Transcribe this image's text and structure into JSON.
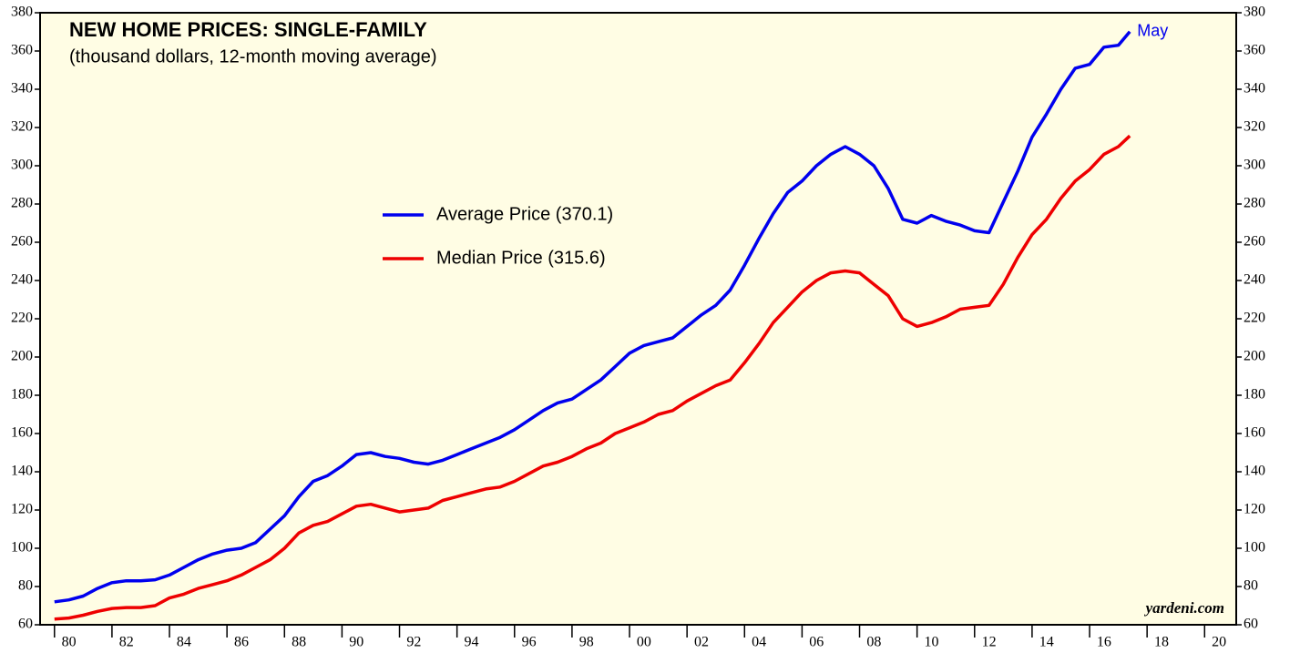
{
  "chart_data": {
    "type": "line",
    "title": "NEW HOME PRICES: SINGLE-FAMILY",
    "subtitle": "(thousand dollars, 12-month moving average)",
    "annotations": [
      "May",
      "yardeni.com"
    ],
    "x": [
      1980.0,
      1980.5,
      1981.0,
      1981.5,
      1982.0,
      1982.5,
      1983.0,
      1983.5,
      1984.0,
      1984.5,
      1985.0,
      1985.5,
      1986.0,
      1986.5,
      1987.0,
      1987.5,
      1988.0,
      1988.5,
      1989.0,
      1989.5,
      1990.0,
      1990.5,
      1991.0,
      1991.5,
      1992.0,
      1992.5,
      1993.0,
      1993.5,
      1994.0,
      1994.5,
      1995.0,
      1995.5,
      1996.0,
      1996.5,
      1997.0,
      1997.5,
      1998.0,
      1998.5,
      1999.0,
      1999.5,
      2000.0,
      2000.5,
      2001.0,
      2001.5,
      2002.0,
      2002.5,
      2003.0,
      2003.5,
      2004.0,
      2004.5,
      2005.0,
      2005.5,
      2006.0,
      2006.5,
      2007.0,
      2007.5,
      2008.0,
      2008.5,
      2009.0,
      2009.5,
      2010.0,
      2010.5,
      2011.0,
      2011.5,
      2012.0,
      2012.5,
      2013.0,
      2013.5,
      2014.0,
      2014.5,
      2015.0,
      2015.5,
      2016.0,
      2016.5,
      2017.0,
      2017.4
    ],
    "series": [
      {
        "name": "Average Price (370.1)",
        "color": "#0000ee",
        "values": [
          72,
          73,
          75,
          79,
          82,
          83,
          83,
          83.5,
          86,
          90,
          94,
          97,
          99,
          100,
          103,
          110,
          117,
          127,
          135,
          138,
          143,
          149,
          150,
          148,
          147,
          145,
          144,
          146,
          149,
          152,
          155,
          158,
          162,
          167,
          172,
          176,
          178,
          183,
          188,
          195,
          202,
          206,
          208,
          210,
          216,
          222,
          227,
          235,
          248,
          262,
          275,
          286,
          292,
          300,
          306,
          310,
          306,
          300,
          288,
          272,
          270,
          274,
          271,
          269,
          266,
          265,
          281,
          297,
          315,
          327,
          340,
          351,
          353,
          362,
          363,
          370.1
        ]
      },
      {
        "name": "Median Price (315.6)",
        "color": "#ee0000",
        "values": [
          63,
          63.5,
          65,
          67,
          68.5,
          69,
          69,
          70,
          74,
          76,
          79,
          81,
          83,
          86,
          90,
          94,
          100,
          108,
          112,
          114,
          118,
          122,
          123,
          121,
          119,
          120,
          121,
          125,
          127,
          129,
          131,
          132,
          135,
          139,
          143,
          145,
          148,
          152,
          155,
          160,
          163,
          166,
          170,
          172,
          177,
          181,
          185,
          188,
          197,
          207,
          218,
          226,
          234,
          240,
          244,
          245,
          244,
          238,
          232,
          220,
          216,
          218,
          221,
          225,
          226,
          227,
          238,
          252,
          264,
          272,
          283,
          292,
          298,
          306,
          310,
          315.6
        ]
      }
    ],
    "xlim": [
      1979.5,
      2021.1
    ],
    "xticks": [
      {
        "value": 1980,
        "label": "80"
      },
      {
        "value": 1982,
        "label": "82"
      },
      {
        "value": 1984,
        "label": "84"
      },
      {
        "value": 1986,
        "label": "86"
      },
      {
        "value": 1988,
        "label": "88"
      },
      {
        "value": 1990,
        "label": "90"
      },
      {
        "value": 1992,
        "label": "92"
      },
      {
        "value": 1994,
        "label": "94"
      },
      {
        "value": 1996,
        "label": "96"
      },
      {
        "value": 1998,
        "label": "98"
      },
      {
        "value": 2000,
        "label": "00"
      },
      {
        "value": 2002,
        "label": "02"
      },
      {
        "value": 2004,
        "label": "04"
      },
      {
        "value": 2006,
        "label": "06"
      },
      {
        "value": 2008,
        "label": "08"
      },
      {
        "value": 2010,
        "label": "10"
      },
      {
        "value": 2012,
        "label": "12"
      },
      {
        "value": 2014,
        "label": "14"
      },
      {
        "value": 2016,
        "label": "16"
      },
      {
        "value": 2018,
        "label": "18"
      },
      {
        "value": 2020,
        "label": "20"
      }
    ],
    "ylim": [
      60,
      380
    ],
    "yticks": [
      60,
      80,
      100,
      120,
      140,
      160,
      180,
      200,
      220,
      240,
      260,
      280,
      300,
      320,
      340,
      360,
      380
    ],
    "background": "#fffde4"
  }
}
